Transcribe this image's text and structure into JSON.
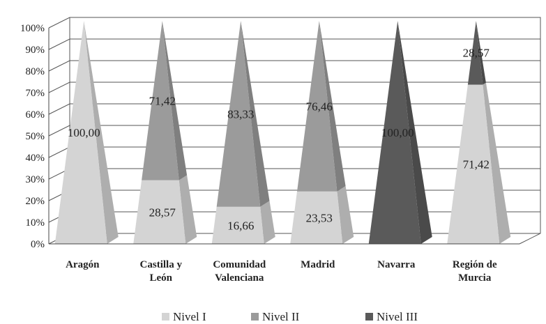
{
  "chart_data": {
    "type": "bar",
    "style": "3d-stacked-100-percent-pyramid",
    "categories": [
      [
        "Aragón"
      ],
      [
        "Castilla y",
        "León"
      ],
      [
        "Comunidad",
        "Valenciana"
      ],
      [
        "Madrid"
      ],
      [
        "Navarra"
      ],
      [
        "Región de",
        "Murcia"
      ]
    ],
    "series": [
      {
        "name": "Nivel I",
        "values": [
          100.0,
          28.57,
          16.66,
          23.53,
          0,
          71.42
        ],
        "labels": [
          "100,00",
          "28,57",
          "16,66",
          "23,53",
          "",
          "71,42"
        ]
      },
      {
        "name": "Nivel II",
        "values": [
          0,
          71.42,
          83.33,
          76.46,
          0,
          0
        ],
        "labels": [
          "",
          "71,42",
          "83,33",
          "76,46",
          "",
          ""
        ]
      },
      {
        "name": "Nivel III",
        "values": [
          0,
          0,
          0,
          0,
          100.0,
          28.57
        ],
        "labels": [
          "",
          "",
          "",
          "",
          "100,00",
          "28,57"
        ]
      }
    ],
    "colors": {
      "Nivel I": "#d4d4d4",
      "Nivel II": "#9b9b9b",
      "Nivel III": "#5a5a5a"
    },
    "y_ticks": [
      "0%",
      "10%",
      "20%",
      "30%",
      "40%",
      "50%",
      "60%",
      "70%",
      "80%",
      "90%",
      "100%"
    ],
    "ylim": [
      0,
      100
    ],
    "grid": true,
    "legend_position": "bottom"
  }
}
